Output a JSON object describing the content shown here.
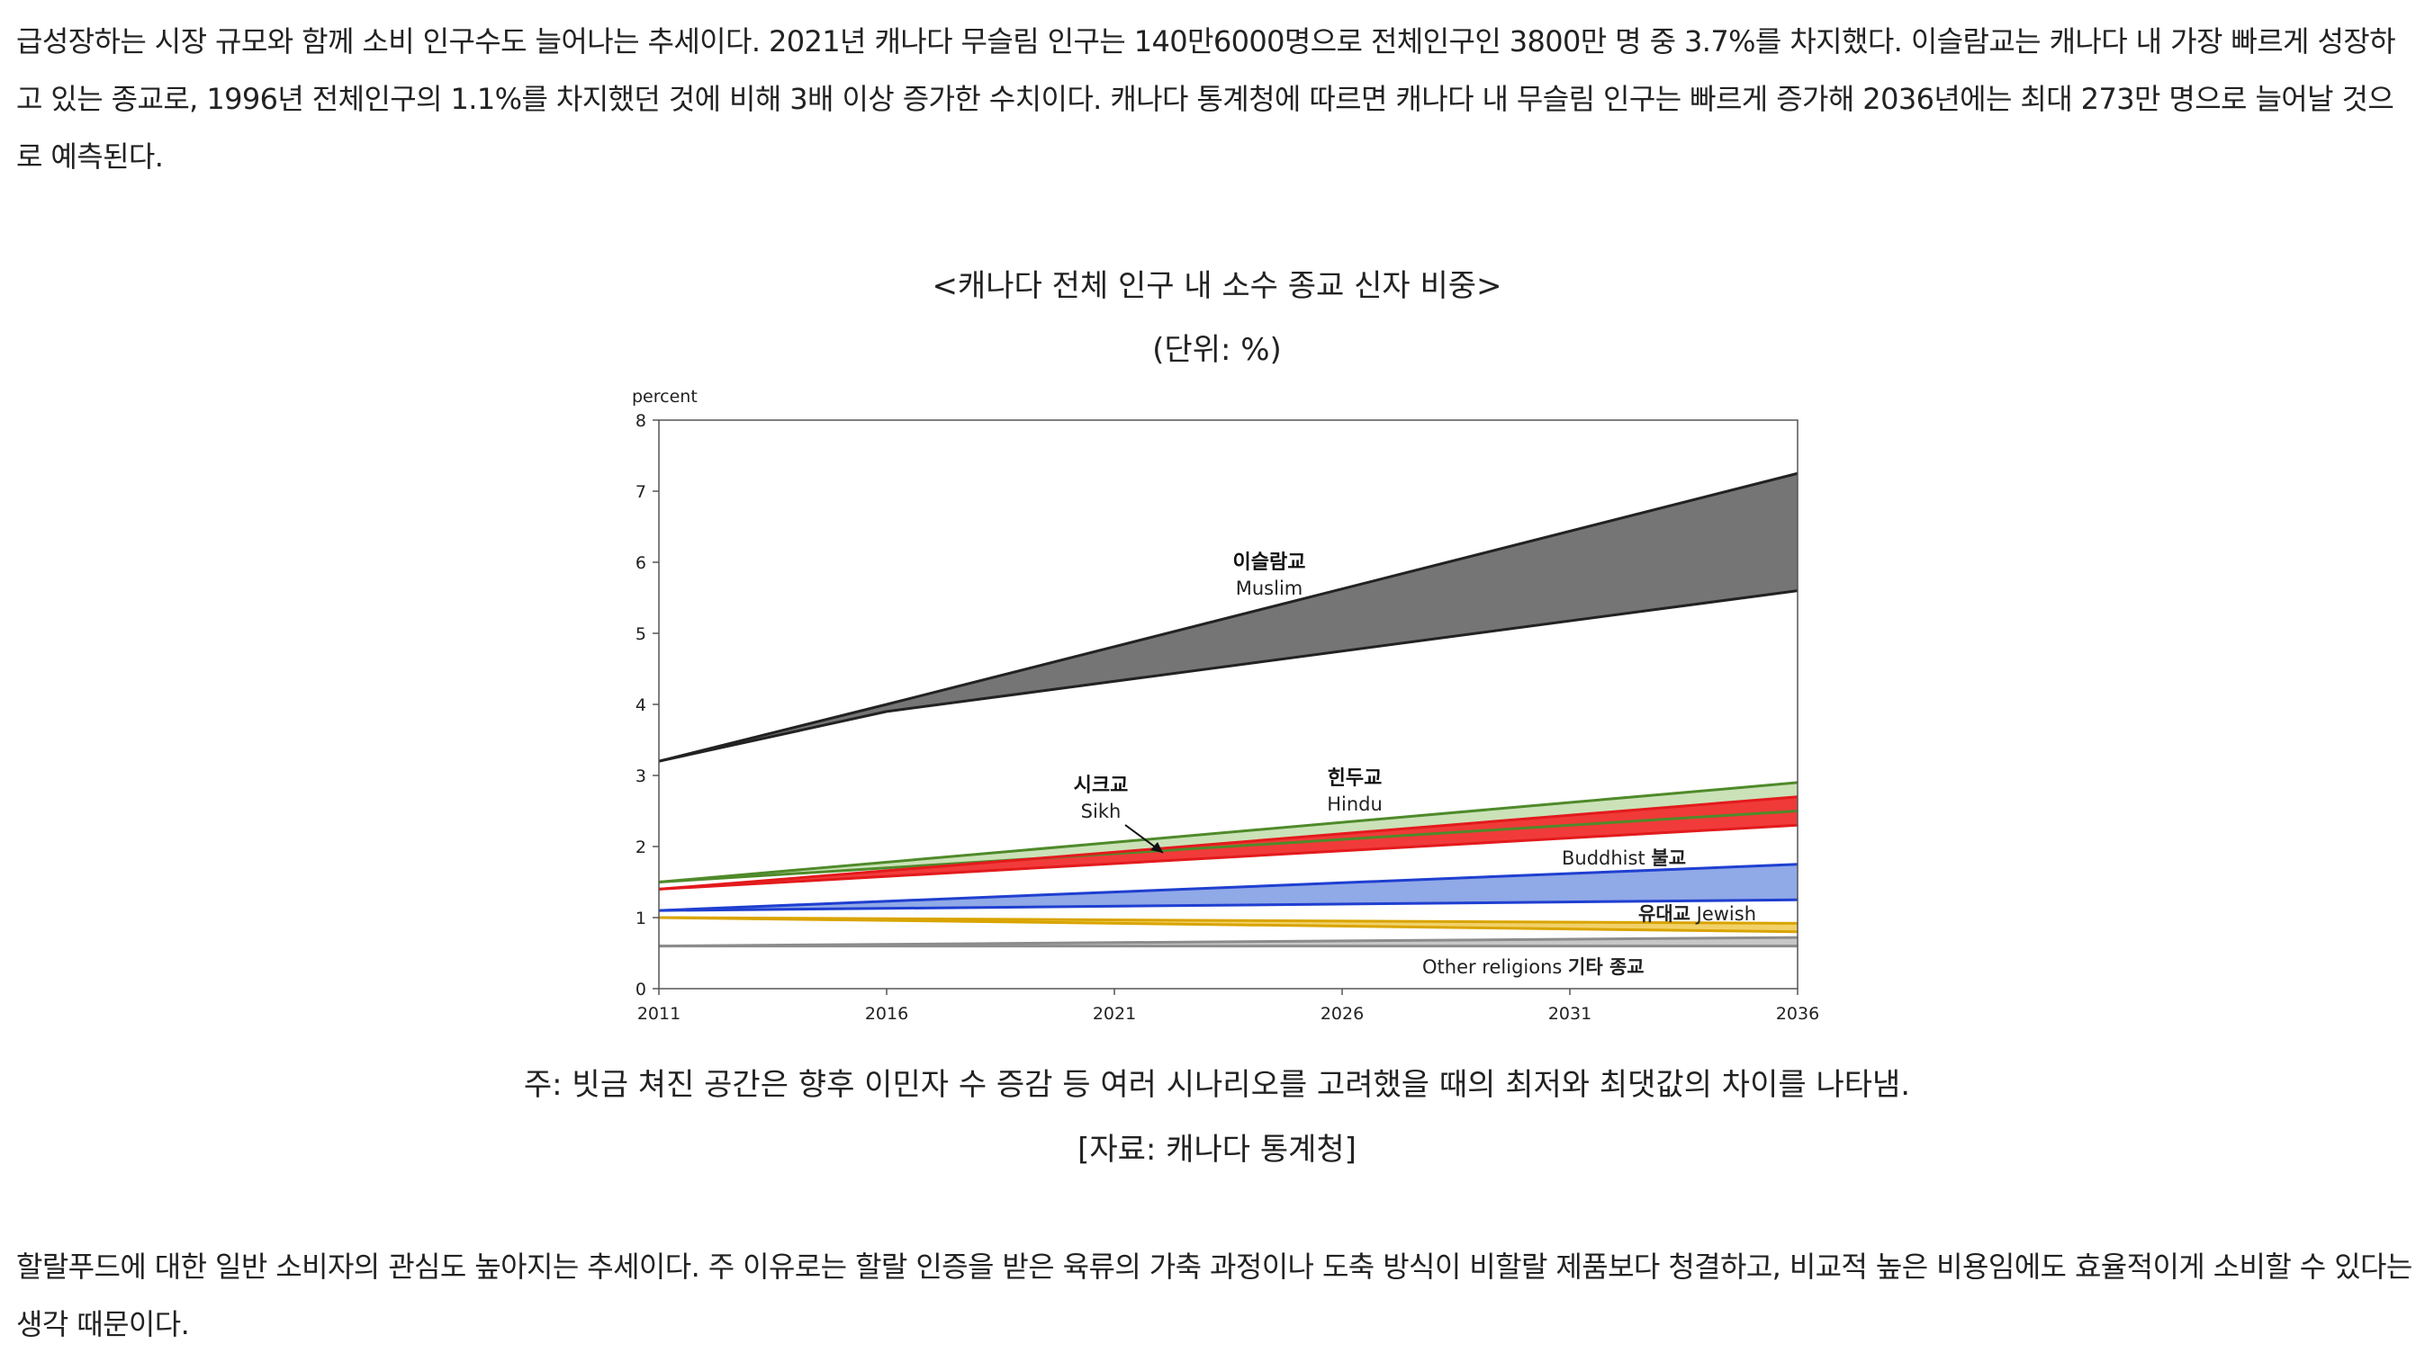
{
  "article": {
    "para1": "급성장하는 시장 규모와 함께 소비 인구수도 늘어나는 추세이다. 2021년 캐나다 무슬림 인구는 140만6000명으로 전체인구인 3800만 명 중 3.7%를 차지했다. 이슬람교는 캐나다 내 가장 빠르게 성장하고 있는 종교로, 1996년 전체인구의 1.1%를 차지했던 것에 비해 3배 이상 증가한 수치이다. 캐나다 통계청에 따르면 캐나다 내 무슬림 인구는 빠르게 증가해 2036년에는 최대 273만 명으로 늘어날 것으로 예측된다.",
    "para2": "할랄푸드에 대한 일반 소비자의 관심도 높아지는 추세이다. 주 이유로는 할랄 인증을 받은 육류의 가축 과정이나 도축 방식이 비할랄 제품보다 청결하고, 비교적 높은 비용임에도 효율적이게 소비할 수 있다는 생각 때문이다."
  },
  "figure": {
    "title": "<캐나다 전체 인구 내 소수 종교 신자 비중>",
    "unit": "(단위: %)",
    "note": "주: 빗금 쳐진 공간은 향후 이민자 수 증감 등 여러 시나리오를 고려했을 때의 최저와 최댓값의 차이를 나타냄.",
    "source": "[자료: 캐나다 통계청]"
  },
  "chart_data": {
    "type": "area",
    "ylabel": "percent",
    "ylim": [
      0,
      8
    ],
    "xlim": [
      2011,
      2036
    ],
    "x_ticks": [
      2011,
      2016,
      2021,
      2026,
      2031,
      2036
    ],
    "y_ticks": [
      0,
      1,
      2,
      3,
      4,
      5,
      6,
      7,
      8
    ],
    "grid": false,
    "series": [
      {
        "name_ko": "이슬람교",
        "name_en": "Muslim",
        "x": [
          2011,
          2016,
          2036
        ],
        "low": [
          3.2,
          3.9,
          5.6
        ],
        "high": [
          3.2,
          4.0,
          7.25
        ],
        "line_color": "#222222",
        "fill_color": "#6e6e6e"
      },
      {
        "name_ko": "힌두교",
        "name_en": "Hindu",
        "x": [
          2011,
          2036
        ],
        "low": [
          1.5,
          2.5
        ],
        "high": [
          1.5,
          2.9
        ],
        "line_color": "#4f8a2a",
        "fill_color": "#c8e0b4"
      },
      {
        "name_ko": "시크교",
        "name_en": "Sikh",
        "x": [
          2011,
          2036
        ],
        "low": [
          1.4,
          2.3
        ],
        "high": [
          1.4,
          2.7
        ],
        "line_color": "#e31a1c",
        "fill_color": "#f03030"
      },
      {
        "name_ko": "불교",
        "name_en": "Buddhist",
        "x": [
          2011,
          2036
        ],
        "low": [
          1.1,
          1.25
        ],
        "high": [
          1.1,
          1.75
        ],
        "line_color": "#1f3fd0",
        "fill_color": "#8aa4e6"
      },
      {
        "name_ko": "유대교",
        "name_en": "Jewish",
        "x": [
          2011,
          2036
        ],
        "low": [
          1.0,
          0.8
        ],
        "high": [
          1.0,
          0.92
        ],
        "line_color": "#d9a400",
        "fill_color": "#f0cf60"
      },
      {
        "name_ko": "기타 종교",
        "name_en": "Other religions",
        "x": [
          2011,
          2036
        ],
        "low": [
          0.6,
          0.6
        ],
        "high": [
          0.6,
          0.72
        ],
        "line_color": "#8c8c8c",
        "fill_color": "#c4c4c4"
      }
    ],
    "annotations": [
      {
        "bold": "이슬람교",
        "sub": "Muslim"
      },
      {
        "bold": "힌두교",
        "sub": "Hindu"
      },
      {
        "bold": "시크교",
        "sub": "Sikh"
      },
      {
        "plain": "Buddhist",
        "bold": "불교"
      },
      {
        "bold": "유대교",
        "plain": "Jewish"
      },
      {
        "plain": "Other religions",
        "bold": "기타 종교"
      }
    ]
  }
}
